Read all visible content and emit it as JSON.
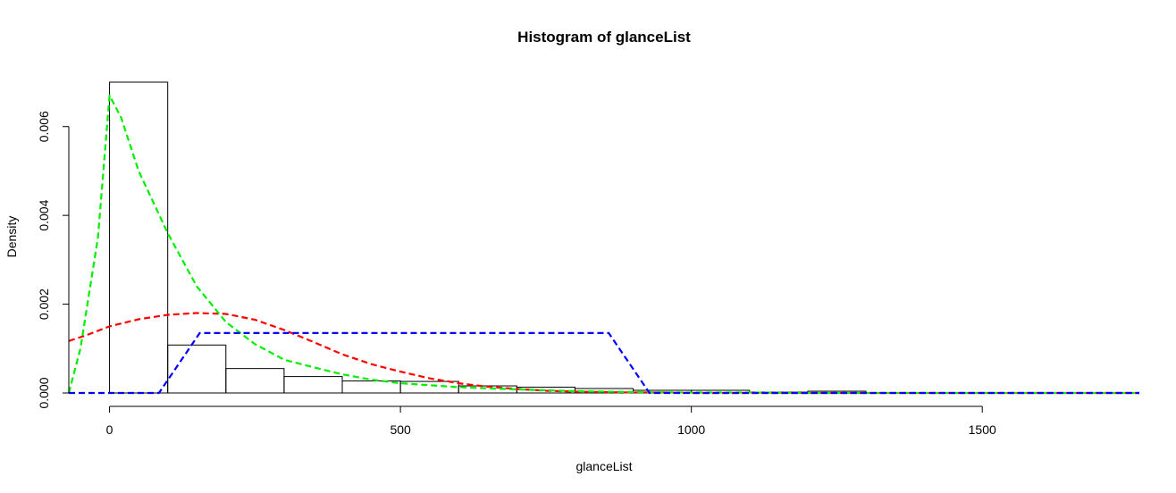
{
  "chart_data": {
    "type": "bar",
    "title": "Histogram of glanceList",
    "xlabel": "glanceList",
    "ylabel": "Density",
    "xlim": [
      -70,
      1770
    ],
    "ylim": [
      0,
      0.007
    ],
    "x_ticks": [
      0,
      500,
      1000,
      1500
    ],
    "x_tick_labels": [
      "0",
      "500",
      "1000",
      "1500"
    ],
    "y_ticks": [
      0,
      0.002,
      0.004,
      0.006
    ],
    "y_tick_labels": [
      "0.000",
      "0.002",
      "0.004",
      "0.006"
    ],
    "grid": false,
    "histogram": {
      "breaks": [
        0,
        100,
        200,
        300,
        400,
        500,
        600,
        700,
        800,
        900,
        1000,
        1100,
        1200,
        1300
      ],
      "density": [
        0.007,
        0.00108,
        0.00055,
        0.00037,
        0.00027,
        0.00026,
        0.00016,
        0.00013,
        0.0001,
        6e-05,
        6e-05,
        2e-05,
        4e-05
      ]
    },
    "series": [
      {
        "color": "#ff0000",
        "style": "dashed",
        "x": [
          -70,
          -40,
          0,
          50,
          100,
          150,
          200,
          250,
          300,
          350,
          400,
          450,
          500,
          550,
          600,
          650,
          700,
          750,
          800,
          850,
          900,
          950,
          1000,
          1100,
          1200,
          1300,
          1400,
          1500,
          1600,
          1770
        ],
        "y": [
          0.00117,
          0.0013,
          0.0015,
          0.00166,
          0.00176,
          0.0018,
          0.00178,
          0.00165,
          0.00142,
          0.00115,
          0.00087,
          0.00065,
          0.00048,
          0.00033,
          0.00022,
          0.00014,
          9e-05,
          5e-05,
          3e-05,
          2e-05,
          1e-05,
          1e-05,
          0.0,
          0.0,
          0.0,
          0.0,
          0.0,
          0.0,
          0.0,
          0.0
        ]
      },
      {
        "color": "#00ee00",
        "style": "dashed",
        "x": [
          -70,
          -50,
          -20,
          0,
          20,
          50,
          100,
          150,
          200,
          250,
          300,
          350,
          400,
          450,
          500,
          600,
          700,
          800,
          900,
          1000,
          1100,
          1200,
          1400,
          1600,
          1770
        ],
        "y": [
          0.0,
          0.001,
          0.0035,
          0.0067,
          0.0062,
          0.005,
          0.0036,
          0.0024,
          0.0016,
          0.0011,
          0.00075,
          0.00058,
          0.00042,
          0.0003,
          0.00022,
          0.00013,
          8e-05,
          4e-05,
          2e-05,
          1e-05,
          1e-05,
          0.0,
          0.0,
          0.0,
          0.0
        ]
      },
      {
        "color": "#0000ff",
        "style": "dashed",
        "x": [
          -70,
          85,
          155,
          858,
          928,
          1770
        ],
        "y": [
          0.0,
          0.0,
          0.00135,
          0.00135,
          0.0,
          0.0
        ]
      }
    ]
  }
}
